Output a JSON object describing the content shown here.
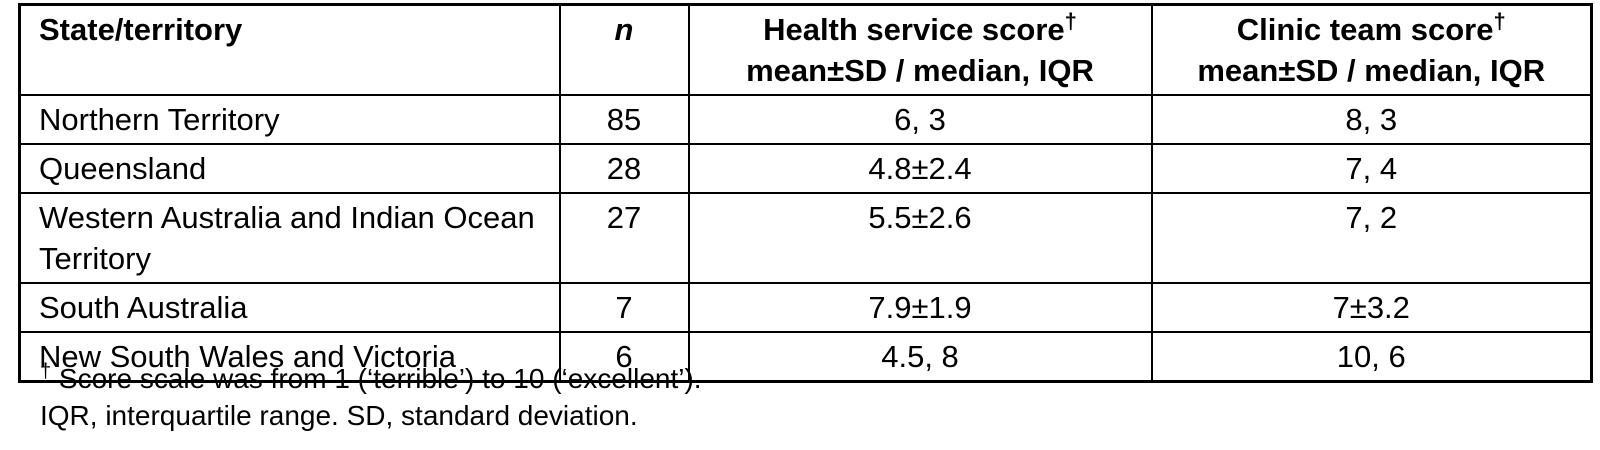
{
  "colors": {
    "background": "#ffffff",
    "border": "#000000",
    "text": "#000000"
  },
  "table": {
    "header": {
      "state": "State/territory",
      "n": "n",
      "dagger": "†",
      "health_title": "Health service score",
      "clinic_title": "Clinic team score",
      "subheader": "mean±SD / median, IQR"
    },
    "rows": [
      {
        "cells": [
          "Northern Territory",
          "85",
          "6, 3",
          "8, 3"
        ]
      },
      {
        "cells": [
          "Queensland",
          "28",
          "4.8±2.4",
          "7, 4"
        ]
      },
      {
        "cells": [
          "Western Australia and Indian Ocean Territory",
          "27",
          "5.5±2.6",
          "7, 2"
        ]
      },
      {
        "cells": [
          "South Australia",
          "7",
          "7.9±1.9",
          "7±3.2"
        ]
      },
      {
        "cells": [
          "New South Wales and Victoria",
          "6",
          "4.5, 8",
          "10, 6"
        ]
      }
    ]
  },
  "footnotes": {
    "dagger": "†",
    "line1": "Score scale was from 1 (‘terrible’) to 10 (‘excellent’).",
    "line2": "IQR, interquartile range. SD, standard deviation."
  }
}
